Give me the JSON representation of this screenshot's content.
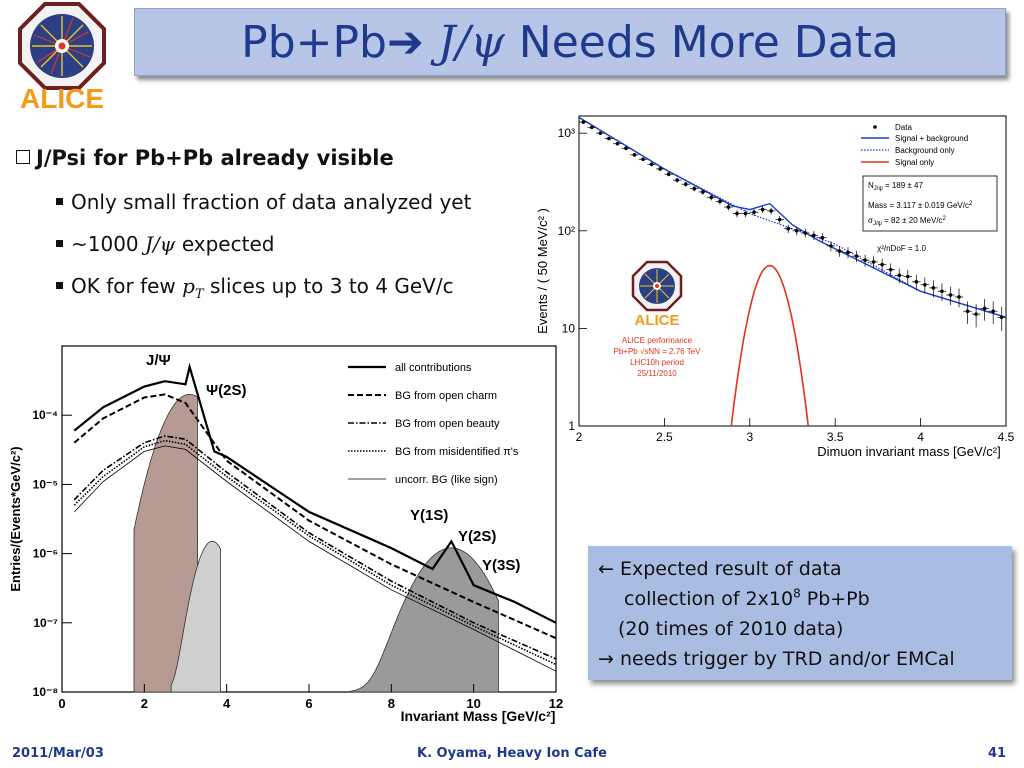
{
  "logo": {
    "text": "ALICE"
  },
  "title": {
    "prefix": "Pb+Pb",
    "arrow": "➔",
    "particle": "J/ψ",
    "suffix": " Needs More Data"
  },
  "bullets": {
    "main": "J/Psi for Pb+Pb already visible",
    "sub1": "Only small fraction of data analyzed yet",
    "sub2_prefix": "~1000 ",
    "sub2_math": "J/ψ",
    "sub2_suffix": " expected",
    "sub3_prefix": "OK for few ",
    "sub3_math": "p",
    "sub3_sub": "T",
    "sub3_suffix": " slices up to 3 to 4 GeV/c"
  },
  "note": {
    "line1": "← Expected result of data",
    "line2_prefix": "collection of 2x10",
    "line2_sup": "8",
    "line2_suffix": " Pb+Pb",
    "line3": "(20 times of 2010 data)",
    "line4": "→ needs trigger by TRD and/or EMCal"
  },
  "footer": {
    "date": "2011/Mar/03",
    "author": "K. Oyama, Heavy Ion Cafe",
    "page": "41"
  },
  "chart_data": [
    {
      "type": "line",
      "xlabel": "Invariant Mass [GeV/c²]",
      "ylabel": "Entries/(Events*GeV/c²)",
      "xlim": [
        0,
        12
      ],
      "ylim": [
        1e-08,
        0.001
      ],
      "yscale": "log",
      "xticks": [
        "0",
        "2",
        "4",
        "6",
        "8",
        "10",
        "12"
      ],
      "yticks": [
        "10⁻⁴",
        "10⁻⁵",
        "10⁻⁶",
        "10⁻⁷",
        "10⁻⁸"
      ],
      "annotations": [
        "J/Ψ",
        "Ψ(2S)",
        "Υ(1S)",
        "Υ(2S)",
        "Υ(3S)"
      ],
      "legend_placement": "top-right",
      "series": [
        {
          "name": "all contributions",
          "style": "solid",
          "x": [
            0.3,
            1,
            2,
            2.5,
            3.0,
            3.1,
            3.7,
            4,
            6,
            8,
            9,
            9.46,
            10,
            11,
            12
          ],
          "y": [
            6e-05,
            0.00013,
            0.00026,
            0.00031,
            0.00028,
            0.0005,
            3e-05,
            2.5e-05,
            4e-06,
            1.2e-06,
            6e-07,
            1.5e-06,
            3.5e-07,
            2e-07,
            1e-07
          ]
        },
        {
          "name": "BG from open charm",
          "style": "dashed",
          "x": [
            0.3,
            1,
            2,
            2.5,
            3,
            4,
            6,
            8,
            10,
            12
          ],
          "y": [
            4e-05,
            9e-05,
            0.00018,
            0.0002,
            0.00015,
            2.2e-05,
            3e-06,
            7e-07,
            2e-07,
            6e-08
          ]
        },
        {
          "name": "BG from open beauty",
          "style": "dashdot",
          "x": [
            0.3,
            1,
            2,
            2.5,
            3,
            4,
            6,
            8,
            10,
            12
          ],
          "y": [
            6e-06,
            1.6e-05,
            4e-05,
            5e-05,
            4.5e-05,
            1.5e-05,
            2e-06,
            4e-07,
            1e-07,
            3e-08
          ]
        },
        {
          "name": "BG from misidentified π's",
          "style": "dotted",
          "x": [
            0.3,
            1,
            2,
            2.5,
            3,
            4,
            6,
            8,
            10,
            12
          ],
          "y": [
            5e-06,
            1.3e-05,
            3.5e-05,
            4.3e-05,
            3.8e-05,
            1.3e-05,
            1.8e-06,
            3.5e-07,
            9e-08,
            2.5e-08
          ]
        },
        {
          "name": "uncorr. BG (like sign)",
          "style": "thin",
          "x": [
            0.3,
            1,
            2,
            2.5,
            3,
            4,
            6,
            8,
            10,
            12
          ],
          "y": [
            4e-06,
            1.1e-05,
            3e-05,
            3.6e-05,
            3.2e-05,
            1.1e-05,
            1.5e-06,
            3e-07,
            8e-08,
            2e-08
          ]
        }
      ]
    },
    {
      "type": "scatter",
      "xlabel": "Dimuon invariant mass [GeV/c²]",
      "ylabel": "Events / ( 50 MeV/c² )",
      "xlim": [
        2,
        4.5
      ],
      "ylim": [
        1,
        1500
      ],
      "yscale": "log",
      "xticks": [
        "2",
        "2.5",
        "3",
        "3.5",
        "4",
        "4.5"
      ],
      "yticks": [
        "10³",
        "10²",
        "10",
        "1"
      ],
      "legend_placement": "top-right",
      "legend": [
        "Data",
        "Signal + background",
        "Background only",
        "Signal only"
      ],
      "fit_box": {
        "l1_pre": "N",
        "l1_sub": "J/ψ",
        "l1_post": " = 189 ± 47",
        "l2_pre": "Mass = 3.117 ± 0.019 GeV/c",
        "l2_sup": "2",
        "l3_pre": "σ",
        "l3_sub": "J/ψ",
        "l3_post": " = 82 ± 20 MeV/c",
        "l3_sup": "2"
      },
      "chi2": "χ²/nDoF = 1.0",
      "performance": {
        "name": "ALICE",
        "l1": "ALICE performance",
        "l2": "Pb+Pb √sNN = 2.76 TeV",
        "l3": "LHC10h period",
        "l4": "25/11/2010"
      },
      "data_x": [
        2.025,
        2.075,
        2.125,
        2.175,
        2.225,
        2.275,
        2.325,
        2.375,
        2.425,
        2.475,
        2.525,
        2.575,
        2.625,
        2.675,
        2.725,
        2.775,
        2.825,
        2.875,
        2.925,
        2.975,
        3.025,
        3.075,
        3.125,
        3.175,
        3.225,
        3.275,
        3.325,
        3.375,
        3.425,
        3.475,
        3.525,
        3.575,
        3.625,
        3.675,
        3.725,
        3.775,
        3.825,
        3.875,
        3.925,
        3.975,
        4.025,
        4.075,
        4.125,
        4.175,
        4.225,
        4.275,
        4.325,
        4.375,
        4.425,
        4.475
      ],
      "data_y": [
        1300,
        1150,
        1000,
        880,
        780,
        700,
        600,
        540,
        480,
        430,
        380,
        330,
        300,
        270,
        250,
        220,
        200,
        175,
        150,
        150,
        155,
        165,
        160,
        130,
        105,
        100,
        95,
        90,
        85,
        70,
        62,
        60,
        55,
        50,
        48,
        45,
        40,
        35,
        34,
        30,
        28,
        26,
        24,
        22,
        21,
        15,
        14,
        16,
        15,
        13
      ],
      "fit_total": {
        "x": [
          2.0,
          2.5,
          2.9,
          3.0,
          3.117,
          3.25,
          3.4,
          4.0,
          4.5
        ],
        "y": [
          1450,
          430,
          180,
          165,
          190,
          115,
          80,
          24,
          13
        ]
      },
      "fit_background": {
        "x": [
          2.0,
          2.5,
          3.0,
          3.5,
          4.0,
          4.5
        ],
        "y": [
          1450,
          430,
          150,
          73,
          24,
          13
        ]
      },
      "fit_signal": {
        "mean": 3.117,
        "sigma": 0.082,
        "peak": 44
      }
    }
  ],
  "colors": {
    "title_text": "#1f3a8c",
    "title_bg": "#b7c5e6",
    "note_bg": "#a9bde3",
    "fit_blue": "#1a3fcc",
    "signal_red": "#e0341e",
    "jpsi_fill": "#b69b94",
    "psi2s_fill": "#cfcfcf",
    "upsilon_fill": "#9a9a9a"
  }
}
